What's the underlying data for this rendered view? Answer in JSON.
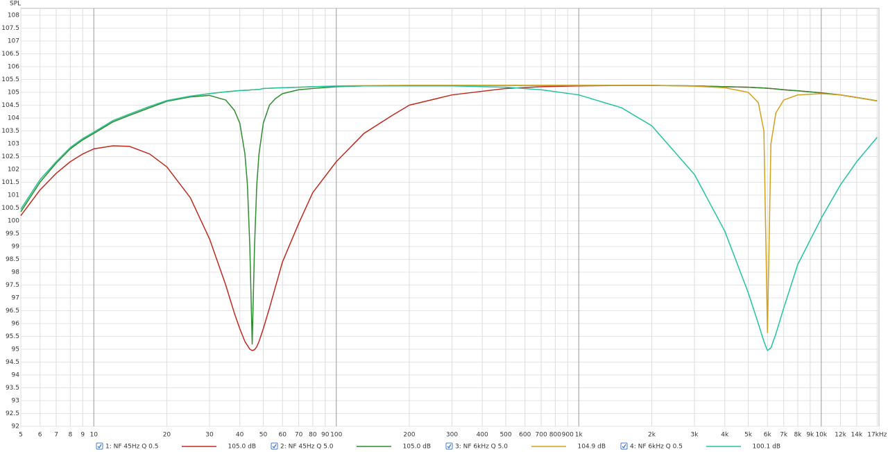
{
  "chart_data": {
    "type": "line",
    "y_label": "SPL",
    "log_x": true,
    "grid": true,
    "xlim": [
      5,
      17300
    ],
    "ylim": [
      92,
      108.27
    ],
    "xticks": [
      5,
      6,
      7,
      8,
      9,
      10,
      20,
      30,
      40,
      50,
      60,
      70,
      80,
      90,
      100,
      200,
      300,
      400,
      500,
      600,
      700,
      800,
      900,
      {
        "value": 1000,
        "label": "1k"
      },
      {
        "value": 2000,
        "label": "2k"
      },
      {
        "value": 3000,
        "label": "3k"
      },
      {
        "value": 4000,
        "label": "4k"
      },
      {
        "value": 5000,
        "label": "5k"
      },
      {
        "value": 6000,
        "label": "6k"
      },
      {
        "value": 7000,
        "label": "7k"
      },
      {
        "value": 8000,
        "label": "8k"
      },
      {
        "value": 9000,
        "label": "9k"
      },
      {
        "value": 10000,
        "label": "10k"
      },
      {
        "value": 12000,
        "label": "12k"
      },
      {
        "value": 14000,
        "label": "14k"
      },
      {
        "value": 17000,
        "label": "17kHz"
      }
    ],
    "yticks": [
      92,
      92.5,
      93,
      93.5,
      94,
      94.5,
      95,
      95.5,
      96,
      96.5,
      97,
      97.5,
      98,
      98.5,
      99,
      99.5,
      100,
      100.5,
      101,
      101.5,
      102,
      102.5,
      103,
      103.5,
      104,
      104.5,
      105,
      105.5,
      106,
      106.5,
      107,
      107.5,
      108
    ],
    "x": [
      5,
      6,
      7,
      8,
      9,
      10,
      12,
      14,
      17,
      20,
      25,
      30,
      35,
      38,
      40,
      42,
      43,
      44,
      45,
      46,
      47,
      48,
      50,
      53,
      56,
      60,
      70,
      80,
      100,
      130,
      170,
      200,
      300,
      500,
      700,
      1000,
      1500,
      2000,
      3000,
      4000,
      5000,
      5500,
      5800,
      6000,
      6200,
      6500,
      7000,
      8000,
      10000,
      12000,
      14000,
      17000
    ],
    "series": [
      {
        "name": "1: NF 45Hz Q 0.5",
        "color": "#c0281e",
        "readout": "105.0 dB",
        "values": [
          100.2,
          101.2,
          101.85,
          102.3,
          102.6,
          102.8,
          102.92,
          102.9,
          102.6,
          102.1,
          100.9,
          99.3,
          97.5,
          96.4,
          95.8,
          95.3,
          95.15,
          95.0,
          94.95,
          94.98,
          95.1,
          95.3,
          95.8,
          96.6,
          97.4,
          98.4,
          99.9,
          101.1,
          102.3,
          103.4,
          104.1,
          104.5,
          104.9,
          105.15,
          105.22,
          105.25,
          105.27,
          105.27,
          105.25,
          105.22,
          105.2,
          105.18,
          105.17,
          105.16,
          105.15,
          105.13,
          105.1,
          105.06,
          104.98,
          104.9,
          104.8,
          104.67
        ]
      },
      {
        "name": "2: NF 45Hz Q 5.0",
        "color": "#2e8b2e",
        "readout": "105.0 dB",
        "values": [
          100.35,
          101.5,
          102.25,
          102.8,
          103.15,
          103.4,
          103.85,
          104.1,
          104.4,
          104.65,
          104.82,
          104.88,
          104.7,
          104.3,
          103.8,
          102.6,
          101.4,
          99.0,
          95.2,
          99.0,
          101.4,
          102.6,
          103.8,
          104.5,
          104.75,
          104.95,
          105.1,
          105.15,
          105.22,
          105.25,
          105.26,
          105.27,
          105.27,
          105.27,
          105.27,
          105.27,
          105.27,
          105.27,
          105.25,
          105.22,
          105.2,
          105.18,
          105.17,
          105.16,
          105.15,
          105.13,
          105.1,
          105.06,
          104.98,
          104.9,
          104.8,
          104.67
        ]
      },
      {
        "name": "3: NF 6kHz Q 5.0",
        "color": "#d4a017",
        "readout": "104.9 dB",
        "values": [
          100.45,
          101.6,
          102.3,
          102.85,
          103.2,
          103.45,
          103.9,
          104.15,
          104.45,
          104.68,
          104.85,
          104.95,
          105.02,
          105.05,
          105.07,
          105.08,
          105.08,
          105.09,
          105.1,
          105.1,
          105.11,
          105.11,
          105.15,
          105.16,
          105.17,
          105.18,
          105.2,
          105.22,
          105.25,
          105.26,
          105.27,
          105.27,
          105.27,
          105.27,
          105.27,
          105.27,
          105.27,
          105.27,
          105.24,
          105.18,
          105.0,
          104.6,
          103.5,
          95.65,
          103.0,
          104.2,
          104.7,
          104.9,
          104.95,
          104.9,
          104.8,
          104.67
        ]
      },
      {
        "name": "4: NF 6kHz Q 0.5",
        "color": "#20c4a0",
        "readout": "100.1 dB",
        "values": [
          100.45,
          101.6,
          102.3,
          102.85,
          103.2,
          103.45,
          103.9,
          104.15,
          104.45,
          104.68,
          104.85,
          104.95,
          105.02,
          105.05,
          105.07,
          105.08,
          105.08,
          105.09,
          105.1,
          105.1,
          105.11,
          105.11,
          105.15,
          105.16,
          105.17,
          105.18,
          105.2,
          105.22,
          105.24,
          105.25,
          105.25,
          105.25,
          105.25,
          105.2,
          105.1,
          104.9,
          104.4,
          103.7,
          101.8,
          99.6,
          97.2,
          96.0,
          95.3,
          94.95,
          95.05,
          95.6,
          96.6,
          98.3,
          100.1,
          101.4,
          102.3,
          103.25
        ]
      }
    ]
  }
}
